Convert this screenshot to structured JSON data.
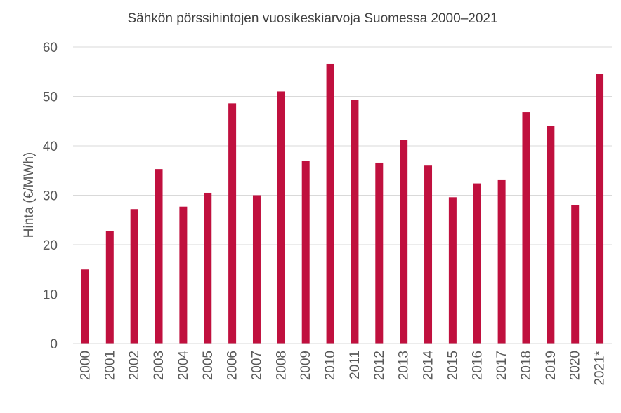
{
  "chart_data": {
    "type": "bar",
    "title": "Sähkön pörssihintojen vuosikeskiarvoja Suomessa 2000–2021",
    "xlabel": "",
    "ylabel": "Hinta (€/MWh)",
    "ylim": [
      0,
      60
    ],
    "yticks": [
      0,
      10,
      20,
      30,
      40,
      50,
      60
    ],
    "grid": true,
    "legend": "none",
    "categories": [
      "2000",
      "2001",
      "2002",
      "2003",
      "2004",
      "2005",
      "2006",
      "2007",
      "2008",
      "2009",
      "2010",
      "2011",
      "2012",
      "2013",
      "2014",
      "2015",
      "2016",
      "2017",
      "2018",
      "2019",
      "2020",
      "2021*"
    ],
    "values": [
      15.0,
      22.8,
      27.2,
      35.3,
      27.7,
      30.5,
      48.6,
      30.0,
      51.0,
      37.0,
      56.6,
      49.3,
      36.6,
      41.2,
      36.0,
      29.6,
      32.4,
      33.2,
      46.8,
      44.0,
      28.0,
      54.6
    ],
    "bar_color": "#c0103e"
  }
}
